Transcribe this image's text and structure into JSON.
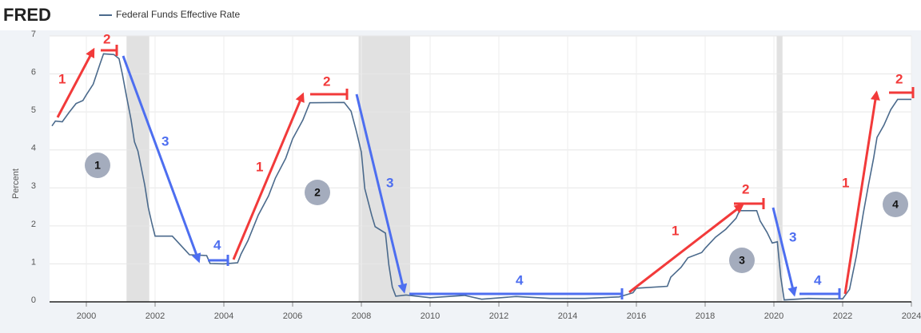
{
  "chart_data": {
    "type": "line",
    "logo": "FRED",
    "ylabel": "Percent",
    "x": [
      1999.0,
      1999.1,
      1999.3,
      1999.5,
      1999.7,
      1999.9,
      2000.0,
      2000.2,
      2000.4,
      2000.5,
      2000.8,
      2000.95,
      2001.05,
      2001.15,
      2001.3,
      2001.4,
      2001.5,
      2001.7,
      2001.8,
      2001.9,
      2002.0,
      2002.5,
      2002.9,
      2003.0,
      2003.5,
      2003.6,
      2004.0,
      2004.4,
      2004.5,
      2004.7,
      2005.0,
      2005.3,
      2005.5,
      2005.8,
      2006.0,
      2006.3,
      2006.5,
      2007.5,
      2007.7,
      2007.85,
      2008.0,
      2008.1,
      2008.3,
      2008.4,
      2008.7,
      2008.8,
      2008.9,
      2009.0,
      2009.3,
      2010.0,
      2011.0,
      2011.5,
      2012.5,
      2013.5,
      2014.5,
      2015.5,
      2015.9,
      2016.0,
      2016.9,
      2017.0,
      2017.3,
      2017.5,
      2017.9,
      2018.0,
      2018.3,
      2018.6,
      2018.9,
      2019.0,
      2019.5,
      2019.6,
      2019.8,
      2019.95,
      2020.1,
      2020.2,
      2020.3,
      2021.0,
      2021.5,
      2022.0,
      2022.2,
      2022.4,
      2022.6,
      2022.75,
      2022.9,
      2023.0,
      2023.2,
      2023.4,
      2023.6,
      2024.0
    ],
    "series": [
      {
        "name": "Federal Funds Effective Rate",
        "color": "#4b6a8c",
        "values": [
          4.63,
          4.76,
          4.74,
          4.99,
          5.22,
          5.3,
          5.45,
          5.73,
          6.27,
          6.53,
          6.51,
          6.4,
          5.98,
          5.49,
          4.8,
          4.21,
          3.97,
          3.07,
          2.49,
          2.09,
          1.73,
          1.73,
          1.34,
          1.24,
          1.22,
          1.01,
          1.0,
          1.03,
          1.26,
          1.61,
          2.28,
          2.79,
          3.26,
          3.78,
          4.29,
          4.79,
          5.24,
          5.25,
          5.02,
          4.5,
          3.94,
          2.98,
          2.28,
          1.98,
          1.81,
          0.97,
          0.39,
          0.15,
          0.18,
          0.11,
          0.17,
          0.07,
          0.14,
          0.09,
          0.09,
          0.13,
          0.24,
          0.36,
          0.41,
          0.65,
          0.91,
          1.16,
          1.3,
          1.41,
          1.7,
          1.91,
          2.2,
          2.4,
          2.4,
          2.13,
          1.83,
          1.55,
          1.58,
          0.65,
          0.05,
          0.09,
          0.08,
          0.08,
          0.33,
          1.21,
          2.33,
          3.08,
          3.78,
          4.33,
          4.65,
          5.06,
          5.33,
          5.33
        ]
      }
    ],
    "recessions": [
      [
        2001.17,
        2001.83
      ],
      [
        2007.92,
        2009.42
      ],
      [
        2020.08,
        2020.25
      ]
    ],
    "recession_color": "#e1e1e1",
    "xlim": [
      1998.93,
      2024.0
    ],
    "xticks": [
      2000,
      2002,
      2004,
      2006,
      2008,
      2010,
      2012,
      2014,
      2016,
      2018,
      2020,
      2022,
      2024
    ],
    "ylim": [
      0,
      7
    ],
    "yticks": [
      0,
      1,
      2,
      3,
      4,
      5,
      6,
      7
    ],
    "grid": true,
    "annotations": [
      "1",
      "2",
      "3",
      "4",
      "1",
      "2",
      "3",
      "4",
      "1",
      "2",
      "3",
      "4",
      "1",
      "2"
    ],
    "cycle_labels": [
      "1",
      "2",
      "3",
      "4"
    ]
  }
}
